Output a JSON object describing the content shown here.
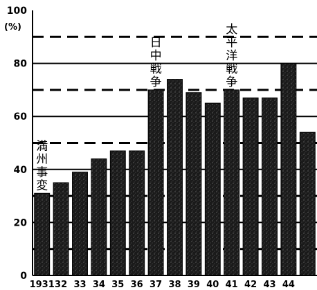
{
  "chart_data": {
    "type": "bar",
    "categories": [
      "1931",
      "32",
      "33",
      "34",
      "35",
      "36",
      "37",
      "38",
      "39",
      "40",
      "41",
      "42",
      "43",
      "44",
      ""
    ],
    "values": [
      31,
      35,
      39,
      44,
      47,
      47,
      70,
      74,
      69,
      65,
      70,
      67,
      67,
      80,
      54
    ],
    "ylim": [
      0,
      100
    ],
    "yticks": [
      0,
      20,
      40,
      60,
      80,
      100
    ],
    "y_unit": "(%)",
    "annotations": [
      {
        "text": "満州事変",
        "at": "1931"
      },
      {
        "text": "日中戦争",
        "at": "37"
      },
      {
        "text": "太平洋戦争",
        "at": "41"
      }
    ],
    "colors": {
      "bar": "#1a1a1a",
      "axis": "#000000",
      "grid": "#000000"
    }
  }
}
